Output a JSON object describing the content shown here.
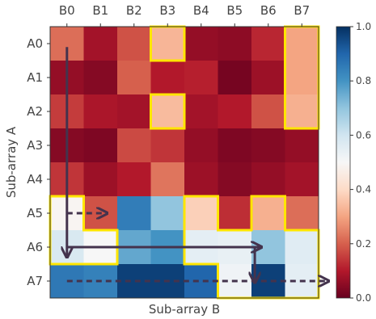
{
  "chart_data": {
    "type": "heatmap",
    "xlabel": "Sub-array B",
    "ylabel": "Sub-array A",
    "x_categories": [
      "B0",
      "B1",
      "B2",
      "B3",
      "B4",
      "B5",
      "B6",
      "B7"
    ],
    "y_categories": [
      "A0",
      "A1",
      "A2",
      "A3",
      "A4",
      "A5",
      "A6",
      "A7"
    ],
    "colormap": "RdBu",
    "vmin": 0.0,
    "vmax": 1.0,
    "colorbar_ticks": [
      "0.0",
      "0.2",
      "0.4",
      "0.6",
      "0.8",
      "1.0"
    ],
    "values": [
      [
        0.22,
        0.08,
        0.18,
        0.33,
        0.06,
        0.05,
        0.12,
        0.3
      ],
      [
        0.06,
        0.04,
        0.2,
        0.1,
        0.11,
        0.02,
        0.07,
        0.3
      ],
      [
        0.15,
        0.09,
        0.08,
        0.34,
        0.08,
        0.1,
        0.18,
        0.32
      ],
      [
        0.04,
        0.03,
        0.17,
        0.14,
        0.06,
        0.03,
        0.04,
        0.06
      ],
      [
        0.14,
        0.07,
        0.1,
        0.23,
        0.07,
        0.04,
        0.06,
        0.08
      ],
      [
        0.49,
        0.18,
        0.85,
        0.7,
        0.38,
        0.13,
        0.32,
        0.22
      ],
      [
        0.58,
        0.5,
        0.76,
        0.8,
        0.55,
        0.54,
        0.7,
        0.56
      ],
      [
        0.86,
        0.84,
        0.97,
        0.97,
        0.9,
        0.52,
        0.97,
        0.55
      ]
    ],
    "highlight_color": "#ffe600",
    "highlighted_cells": [
      [
        0,
        3
      ],
      [
        2,
        3
      ],
      [
        0,
        7
      ],
      [
        1,
        7
      ],
      [
        2,
        7
      ],
      [
        5,
        0
      ],
      [
        6,
        0
      ],
      [
        6,
        1
      ],
      [
        5,
        4
      ],
      [
        6,
        4
      ],
      [
        6,
        5
      ],
      [
        7,
        5
      ],
      [
        5,
        6
      ],
      [
        6,
        6
      ],
      [
        7,
        6
      ],
      [
        6,
        7
      ],
      [
        7,
        7
      ]
    ],
    "arrow_color": "#44334d",
    "arrows": [
      {
        "from": [
          0,
          0.1
        ],
        "to": [
          0,
          6.3
        ],
        "dashed": false
      },
      {
        "from": [
          0,
          5
        ],
        "to": [
          1.2,
          5
        ],
        "dashed": true
      },
      {
        "from": [
          0,
          6
        ],
        "to": [
          5.8,
          6
        ],
        "dashed": false
      },
      {
        "from": [
          5.6,
          6
        ],
        "to": [
          5.6,
          7.05
        ],
        "dashed": false
      },
      {
        "from": [
          0,
          7
        ],
        "to": [
          7.8,
          7
        ],
        "dashed": true
      }
    ]
  }
}
